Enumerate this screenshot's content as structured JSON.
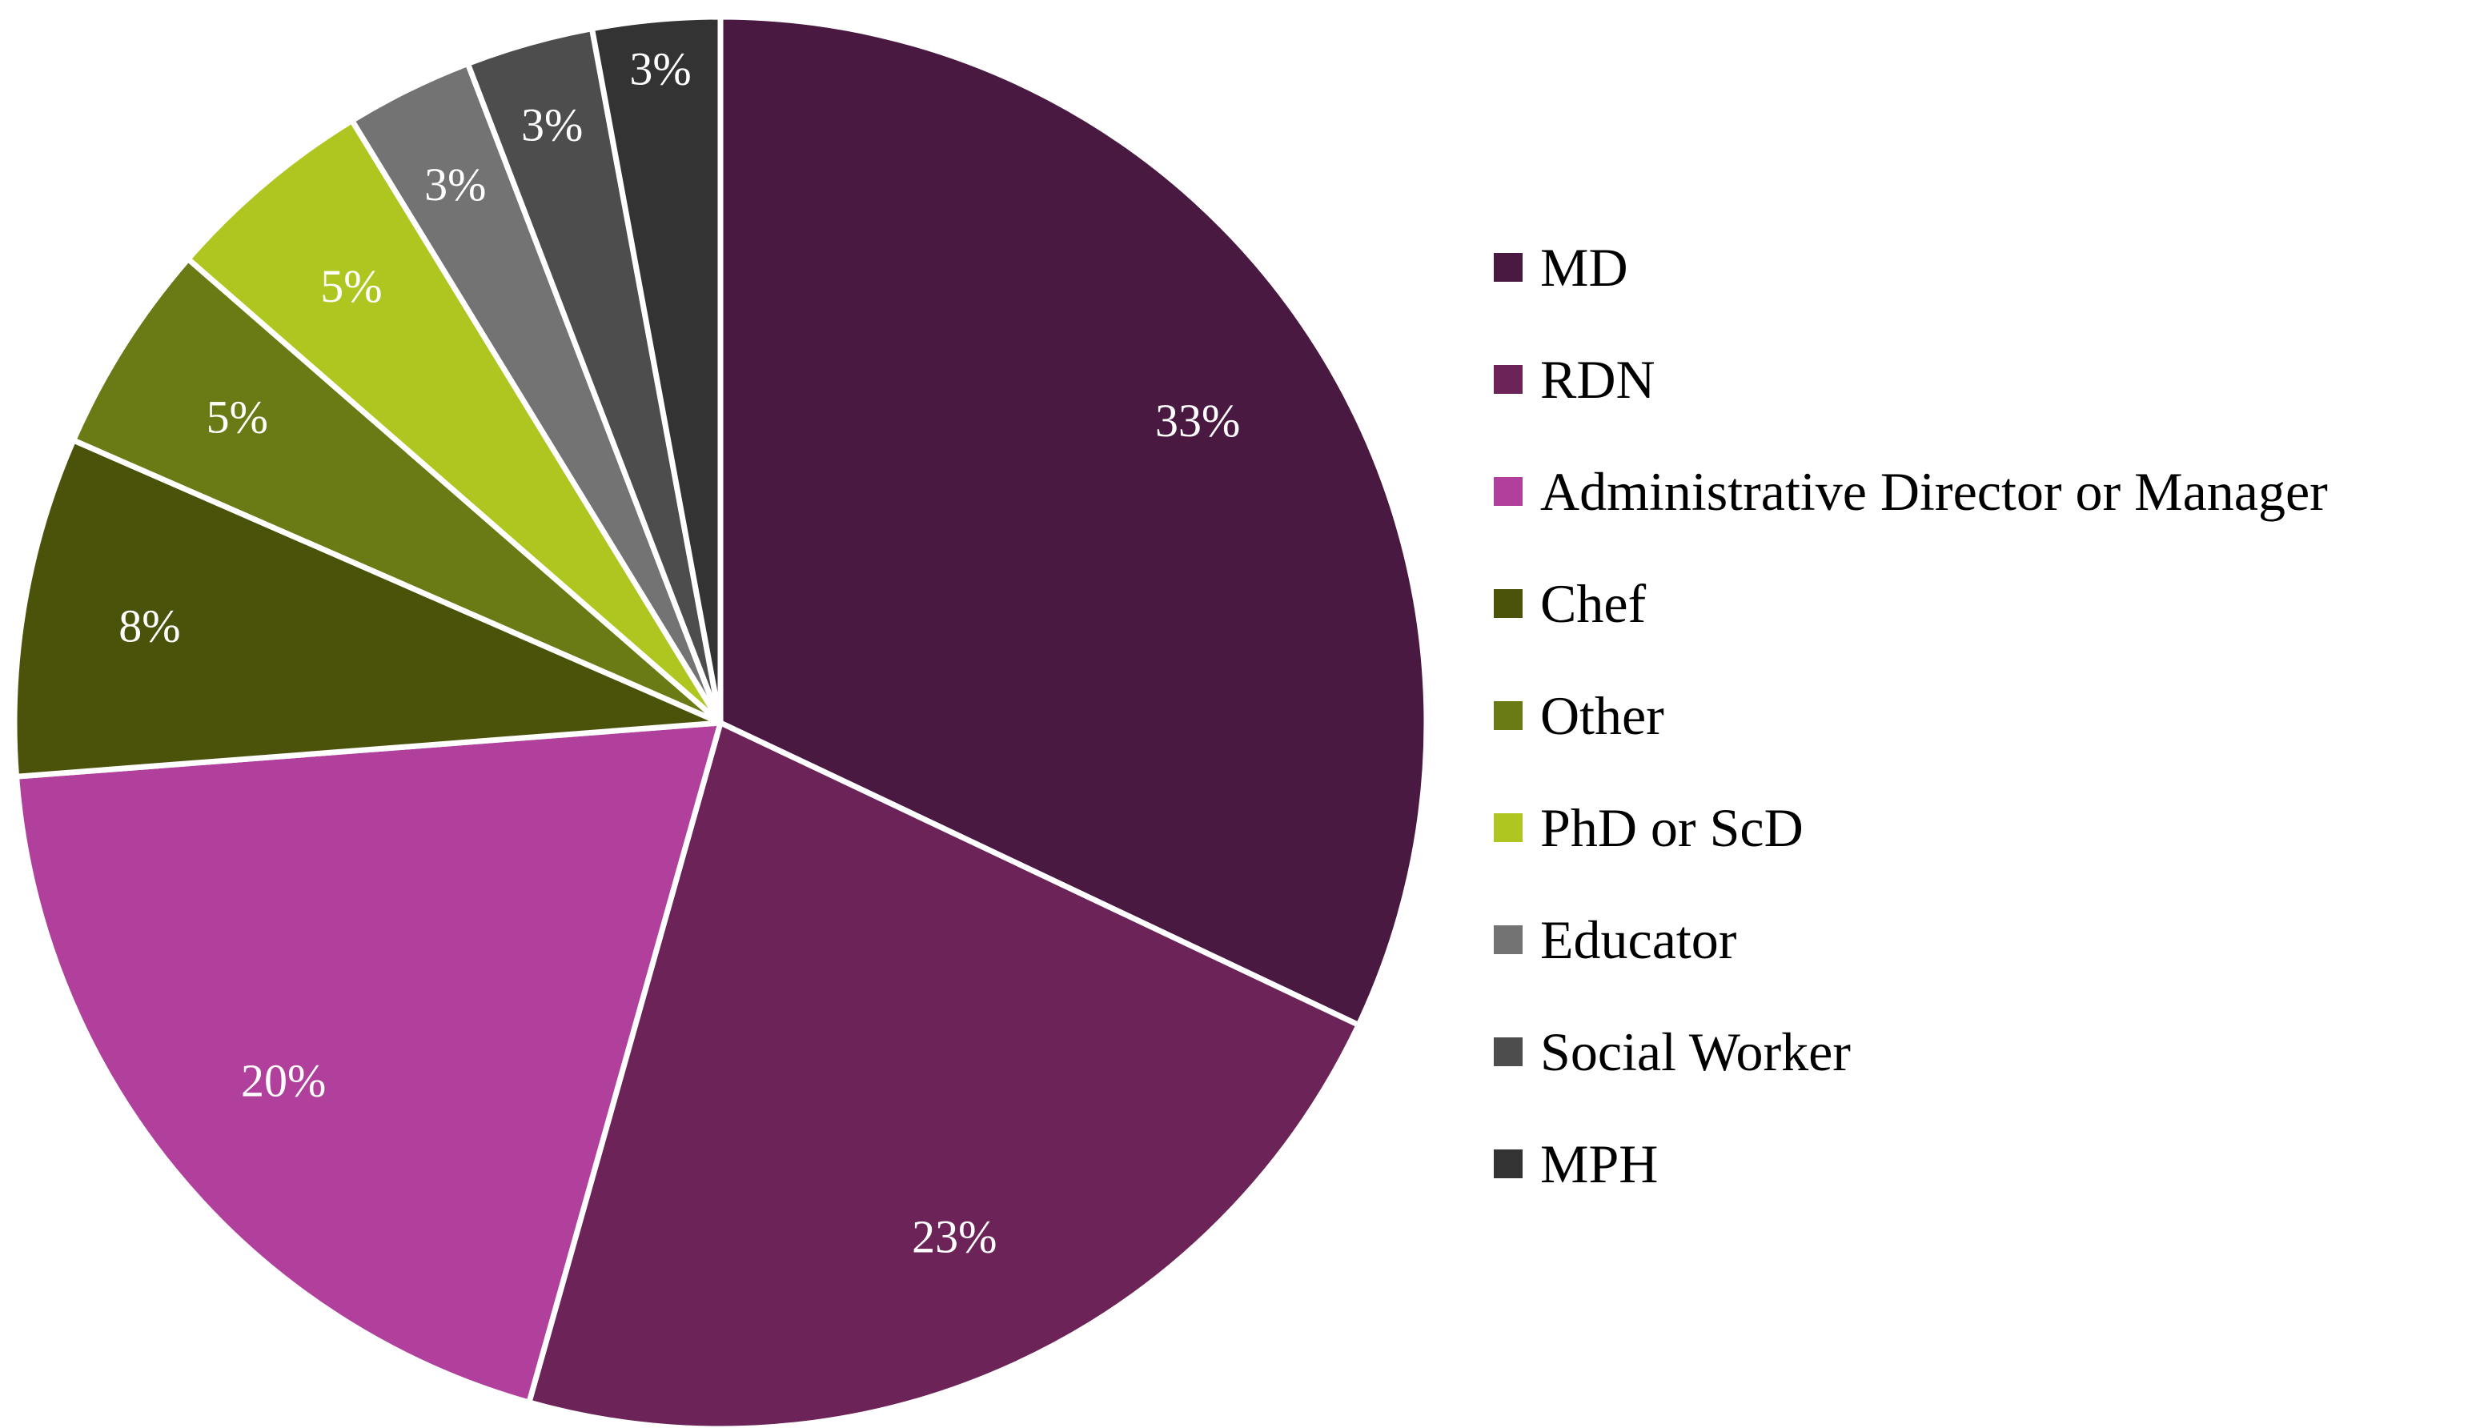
{
  "chart_data": {
    "type": "pie",
    "title": "",
    "legend_position": "right",
    "start_angle_deg": 0,
    "direction": "clockwise",
    "slices": [
      {
        "name": "MD",
        "value": 33,
        "label": "33%",
        "color": "#4a1942"
      },
      {
        "name": "RDN",
        "value": 23,
        "label": "23%",
        "color": "#6c2358"
      },
      {
        "name": "Administrative Director or Manager",
        "value": 20,
        "label": "20%",
        "color": "#b0409b"
      },
      {
        "name": "Chef",
        "value": 8,
        "label": "8%",
        "color": "#4b530b"
      },
      {
        "name": "Other",
        "value": 5,
        "label": "5%",
        "color": "#6a7a15"
      },
      {
        "name": "PhD or ScD",
        "value": 5,
        "label": "5%",
        "color": "#afc620"
      },
      {
        "name": "Educator",
        "value": 3,
        "label": "3%",
        "color": "#737373"
      },
      {
        "name": "Social Worker",
        "value": 3,
        "label": "3%",
        "color": "#4d4d4d"
      },
      {
        "name": "MPH",
        "value": 3,
        "label": "3%",
        "color": "#333333"
      }
    ]
  }
}
